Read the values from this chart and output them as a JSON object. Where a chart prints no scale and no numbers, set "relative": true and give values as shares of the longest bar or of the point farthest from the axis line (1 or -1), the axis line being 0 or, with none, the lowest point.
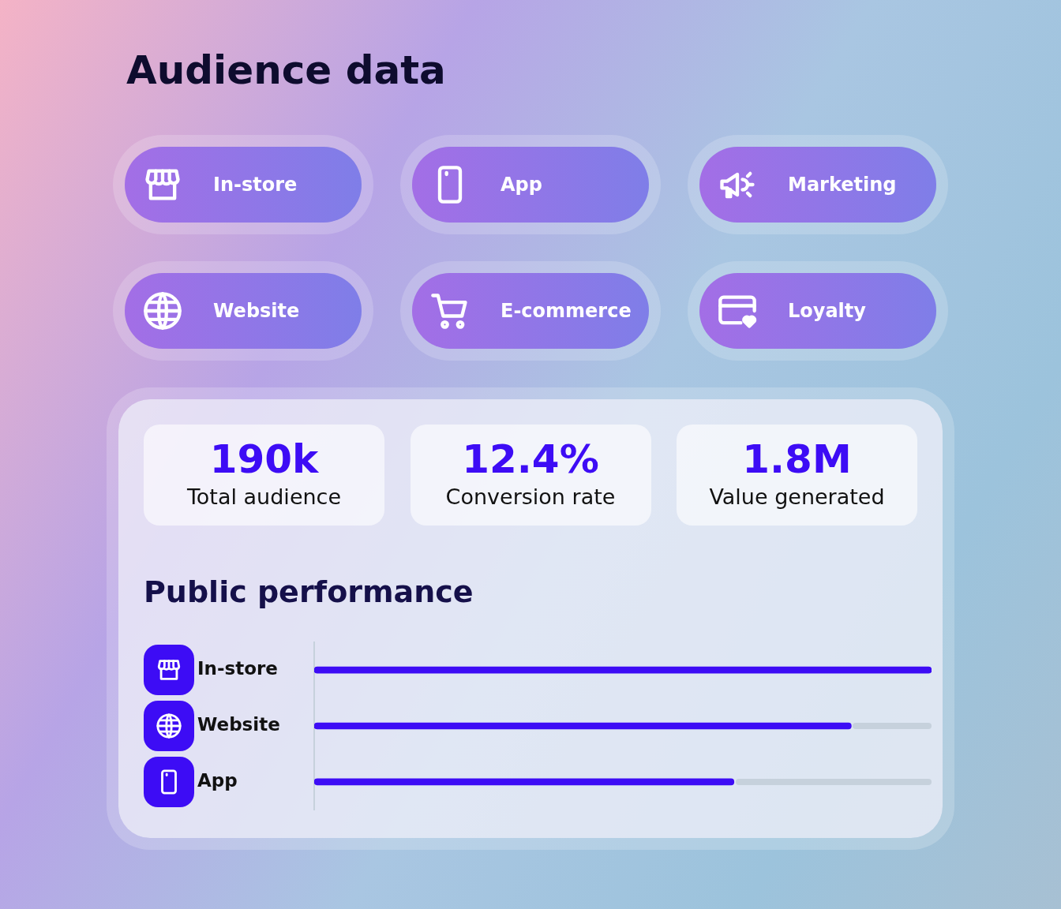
{
  "chart_data": [
    {
      "type": "other",
      "title": "Audience data",
      "annotations": [
        "In-store",
        "App",
        "Marketing",
        "Website",
        "E-commerce",
        "Loyalty"
      ]
    },
    {
      "type": "other",
      "annotations": [
        "190k",
        "Total audience",
        "12.4%",
        "Conversion rate",
        "1.8M",
        "Value generated"
      ]
    },
    {
      "type": "bar",
      "title": "Public performance",
      "orientation": "horizontal",
      "relative": true,
      "categories": [
        "In-store",
        "Website",
        "App"
      ],
      "values": [
        1,
        0.87,
        0.68
      ],
      "color": "#3d0cf5"
    }
  ]
}
